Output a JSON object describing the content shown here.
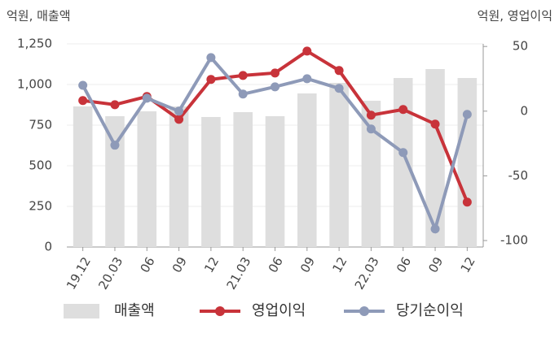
{
  "chart_data": {
    "type": "bar-line",
    "y_label": "억원, 매출액",
    "y2_label": "억원, 영업이익",
    "categories": [
      "19.12",
      "20.03",
      "06",
      "09",
      "12",
      "21.03",
      "06",
      "09",
      "12",
      "22.03",
      "06",
      "09",
      "12"
    ],
    "series": [
      {
        "name": "매출액",
        "type": "bar",
        "color": "#dedede",
        "values": [
          865,
          805,
          835,
          865,
          800,
          830,
          805,
          945,
          1010,
          900,
          1040,
          1095,
          1040
        ]
      },
      {
        "name": "영업이익",
        "type": "line",
        "axis": "y2",
        "color": "#c8333a",
        "values": [
          8.2,
          5,
          11.3,
          -6.3,
          24.5,
          27.6,
          29.5,
          46.4,
          31.4,
          -3.1,
          1.3,
          -10,
          -70.3
        ]
      },
      {
        "name": "당기순이익",
        "type": "line",
        "axis": "y2",
        "color": "#8e9ab8",
        "values": [
          20,
          -26.3,
          10,
          0,
          41.4,
          13.2,
          18.8,
          25.1,
          17.6,
          -13.8,
          -32,
          -91,
          -2.5
        ]
      }
    ],
    "ylim": [
      0,
      1250
    ],
    "yticks": [
      0,
      250,
      500,
      750,
      {
        "value": 1000,
        "label": "1,000"
      },
      {
        "value": 1250,
        "label": "1,250"
      }
    ],
    "y2lim": [
      -105,
      52
    ],
    "y2ticks": [
      50,
      0,
      -50,
      -100
    ],
    "grid": true
  }
}
